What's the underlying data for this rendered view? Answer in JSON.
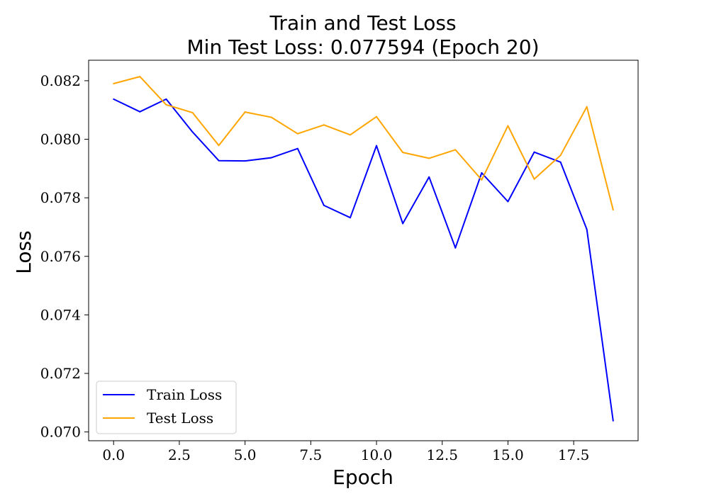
{
  "chart_data": {
    "type": "line",
    "title": "Train and Test Loss",
    "subtitle": "Min Test Loss: 0.077594 (Epoch 20)",
    "xlabel": "Epoch",
    "ylabel": "Loss",
    "xlim": [
      -0.95,
      19.95
    ],
    "ylim": [
      0.0697,
      0.0827
    ],
    "xticks": [
      0.0,
      2.5,
      5.0,
      7.5,
      10.0,
      12.5,
      15.0,
      17.5
    ],
    "xtick_labels": [
      "0.0",
      "2.5",
      "5.0",
      "7.5",
      "10.0",
      "12.5",
      "15.0",
      "17.5"
    ],
    "yticks": [
      0.07,
      0.072,
      0.074,
      0.076,
      0.078,
      0.08,
      0.082
    ],
    "ytick_labels": [
      "0.070",
      "0.072",
      "0.074",
      "0.076",
      "0.078",
      "0.080",
      "0.082"
    ],
    "grid": false,
    "legend_position": "bottom-left",
    "x": [
      0,
      1,
      2,
      3,
      4,
      5,
      6,
      7,
      8,
      9,
      10,
      11,
      12,
      13,
      14,
      15,
      16,
      17,
      18,
      19
    ],
    "series": [
      {
        "name": "Train Loss",
        "color": "#0000ff",
        "values": [
          0.08137,
          0.08094,
          0.08137,
          0.08025,
          0.07927,
          0.07926,
          0.07937,
          0.07968,
          0.07774,
          0.07732,
          0.07978,
          0.07712,
          0.07871,
          0.07629,
          0.07885,
          0.07787,
          0.07956,
          0.07922,
          0.07692,
          0.07038
        ]
      },
      {
        "name": "Test Loss",
        "color": "#ffa500",
        "values": [
          0.0819,
          0.08214,
          0.08118,
          0.08091,
          0.07979,
          0.08093,
          0.08075,
          0.08019,
          0.08049,
          0.08015,
          0.08077,
          0.07955,
          0.07935,
          0.07964,
          0.07861,
          0.08046,
          0.07864,
          0.07945,
          0.08111,
          0.07759
        ]
      }
    ]
  }
}
